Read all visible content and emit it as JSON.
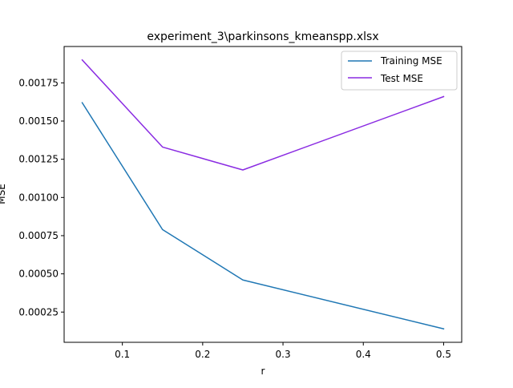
{
  "chart_data": {
    "type": "line",
    "title": "experiment_3\\parkinsons_kmeanspp.xlsx",
    "xlabel": "r",
    "ylabel": "MSE",
    "x": [
      0.05,
      0.15,
      0.25,
      0.5
    ],
    "series": [
      {
        "name": "Training MSE",
        "color": "#1f77b4",
        "values": [
          0.00162,
          0.00079,
          0.00046,
          0.00014
        ]
      },
      {
        "name": "Test MSE",
        "color": "#8a2be2",
        "values": [
          0.0019,
          0.00133,
          0.00118,
          0.00166
        ]
      }
    ],
    "xlim": [
      0.0275,
      0.5225
    ],
    "ylim": [
      5.2e-05,
      0.001988
    ],
    "xticks": [
      0.1,
      0.2,
      0.3,
      0.4,
      0.5
    ],
    "xtick_labels": [
      "0.1",
      "0.2",
      "0.3",
      "0.4",
      "0.5"
    ],
    "yticks": [
      0.00025,
      0.0005,
      0.00075,
      0.001,
      0.00125,
      0.0015,
      0.00175
    ],
    "ytick_labels": [
      "0.00025",
      "0.00050",
      "0.00075",
      "0.00100",
      "0.00125",
      "0.00150",
      "0.00175"
    ],
    "grid": false,
    "legend_position": "upper-right"
  }
}
